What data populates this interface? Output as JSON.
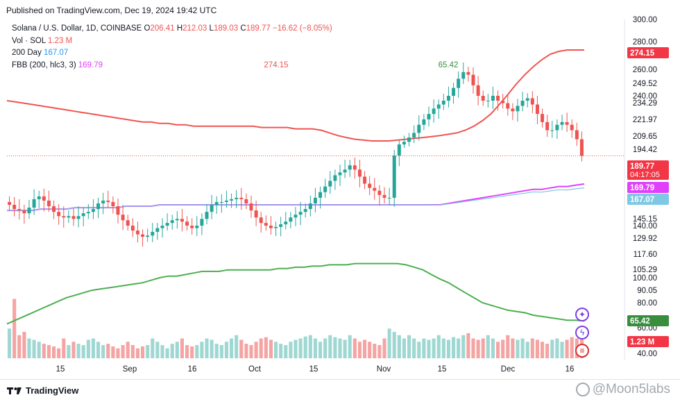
{
  "header": {
    "published": "Published on TradingView.com, Dec 19, 2024 19:42 UTC"
  },
  "legend": {
    "symbol": "Solana / U.S. Dollar, 1D, COINBASE",
    "open_label": "O",
    "open": "206.41",
    "high_label": "H",
    "high": "212.03",
    "low_label": "L",
    "low": "189.03",
    "close_label": "C",
    "close": "189.77",
    "change": "−16.62 (−8.05%)",
    "vol_label": "Vol · SOL",
    "vol": "1.23 M",
    "ma_label": "200 Day",
    "ma": "167.07",
    "fbb_label": "FBB (200, hlc3, 3)",
    "fbb": "169.79"
  },
  "annotations": {
    "upper_peak": "274.15",
    "lower_peak": "65.42"
  },
  "footer": {
    "brand": "TradingView",
    "watermark": "@Moon5labs"
  },
  "colors": {
    "up": "#26a69a",
    "down": "#ef5350",
    "upper_band": "#f05450",
    "lower_band": "#4caf50",
    "fbb_mid": "#e040fb",
    "ma": "#7ec8e3"
  },
  "chart_data": {
    "type": "candlestick",
    "title": "Solana / U.S. Dollar, 1D, COINBASE",
    "y_axis_ticks": [
      "300.00",
      "280.00",
      "260.00",
      "249.52",
      "240.00",
      "234.29",
      "221.97",
      "209.65",
      "194.42",
      "145.15",
      "140.00",
      "129.92",
      "117.60",
      "105.29",
      "100.00",
      "90.05",
      "80.00",
      "60.00",
      "40.00"
    ],
    "x_axis_ticks": [
      "15",
      "Sep",
      "16",
      "Oct",
      "15",
      "Nov",
      "15",
      "Dec",
      "16"
    ],
    "price_badges": [
      {
        "label": "274.15",
        "color": "#f23645"
      },
      {
        "label": "189.77",
        "sub": "04:17:05",
        "color": "#f23645"
      },
      {
        "label": "169.79",
        "color": "#e040fb"
      },
      {
        "label": "167.07",
        "color": "#7ec8e3"
      },
      {
        "label": "65.42",
        "color": "#388e3c"
      },
      {
        "label": "1.23 M",
        "color": "#f23645"
      }
    ],
    "close_series": [
      155,
      152,
      151,
      149,
      153,
      159,
      161,
      158,
      154,
      150,
      147,
      146,
      147,
      145,
      147,
      149,
      150,
      152,
      156,
      158,
      157,
      154,
      148,
      144,
      140,
      136,
      133,
      131,
      132,
      135,
      138,
      140,
      142,
      144,
      145,
      143,
      140,
      138,
      140,
      145,
      150,
      155,
      157,
      157,
      158,
      159,
      160,
      159,
      156,
      151,
      146,
      142,
      140,
      138,
      139,
      141,
      143,
      146,
      148,
      150,
      152,
      156,
      160,
      164,
      168,
      172,
      176,
      178,
      180,
      183,
      180,
      175,
      170,
      167,
      165,
      162,
      160,
      160,
      190,
      200,
      203,
      208,
      212,
      218,
      222,
      226,
      230,
      233,
      236,
      240,
      246,
      253,
      258,
      256,
      248,
      240,
      236,
      236,
      240,
      236,
      234,
      230,
      228,
      232,
      236,
      238,
      233,
      226,
      220,
      214,
      214,
      218,
      220,
      218,
      214,
      206,
      189.77
    ],
    "upper_band": [
      236,
      235,
      234,
      233,
      232,
      231,
      230,
      229,
      228,
      227,
      226,
      225,
      224,
      223,
      222,
      221,
      220,
      220,
      219,
      219,
      218,
      218,
      217,
      217,
      217,
      217,
      217,
      217,
      217,
      217,
      216,
      216,
      216,
      216,
      215,
      215,
      215,
      214,
      212,
      210,
      208,
      206,
      205,
      204,
      204,
      204,
      205,
      206,
      207,
      208,
      209,
      210,
      211,
      212,
      214,
      217,
      221,
      226,
      233,
      241,
      249,
      256,
      262,
      267,
      271,
      273,
      274,
      274,
      274
    ],
    "lower_band": [
      63,
      66,
      69,
      72,
      75,
      78,
      81,
      84,
      86,
      88,
      90,
      91,
      92,
      93,
      94,
      95,
      96,
      98,
      100,
      101,
      101,
      102,
      103,
      104,
      104,
      104,
      105,
      105,
      105,
      105,
      105,
      105,
      106,
      106,
      107,
      107,
      108,
      108,
      109,
      109,
      109,
      110,
      110,
      110,
      110,
      110,
      110,
      109,
      107,
      105,
      102,
      99,
      96,
      92,
      88,
      84,
      80,
      78,
      76,
      74,
      73,
      72,
      70,
      69,
      68,
      67,
      66,
      66,
      65.42
    ],
    "fbb_mid": [
      151,
      151,
      151,
      151,
      152,
      152,
      152,
      152,
      153,
      153,
      153,
      153,
      153,
      153,
      154,
      154,
      154,
      154,
      155,
      155,
      155,
      155,
      155,
      155,
      155,
      155,
      155,
      155,
      155,
      155,
      155,
      155,
      155,
      155,
      155,
      155,
      155,
      155,
      155,
      155,
      155,
      155,
      155,
      155,
      155,
      155,
      155,
      155,
      155,
      155,
      155,
      155,
      156,
      157,
      158,
      159,
      160,
      161,
      162,
      163,
      164,
      165,
      166,
      166,
      167,
      168,
      168,
      169,
      169.79
    ],
    "ma_200": [
      167.07
    ],
    "volume_relative": [
      0.45,
      0.9,
      0.35,
      0.4,
      0.3,
      0.28,
      0.25,
      0.22,
      0.2,
      0.18,
      0.15,
      0.3,
      0.2,
      0.25,
      0.22,
      0.2,
      0.28,
      0.3,
      0.25,
      0.2,
      0.22,
      0.18,
      0.15,
      0.2,
      0.25,
      0.2,
      0.15,
      0.18,
      0.2,
      0.3,
      0.25,
      0.2,
      0.15,
      0.22,
      0.25,
      0.3,
      0.2,
      0.18,
      0.2,
      0.25,
      0.3,
      0.28,
      0.22,
      0.2,
      0.25,
      0.3,
      0.35,
      0.28,
      0.22,
      0.2,
      0.25,
      0.3,
      0.32,
      0.28,
      0.25,
      0.22,
      0.2,
      0.25,
      0.28,
      0.3,
      0.33,
      0.35,
      0.3,
      0.25,
      0.3,
      0.35,
      0.32,
      0.3,
      0.28,
      0.35,
      0.3,
      0.25,
      0.28,
      0.25,
      0.22,
      0.2,
      0.3,
      0.45,
      0.4,
      0.35,
      0.3,
      0.35,
      0.3,
      0.25,
      0.3,
      0.28,
      0.3,
      0.35,
      0.3,
      0.28,
      0.32,
      0.3,
      0.35,
      0.38,
      0.3,
      0.28,
      0.3,
      0.35,
      0.3,
      0.25,
      0.28,
      0.35,
      0.3,
      0.28,
      0.3,
      0.25,
      0.3,
      0.28,
      0.25,
      0.22,
      0.28,
      0.3,
      0.25,
      0.28,
      0.32,
      0.3,
      0.3
    ]
  }
}
